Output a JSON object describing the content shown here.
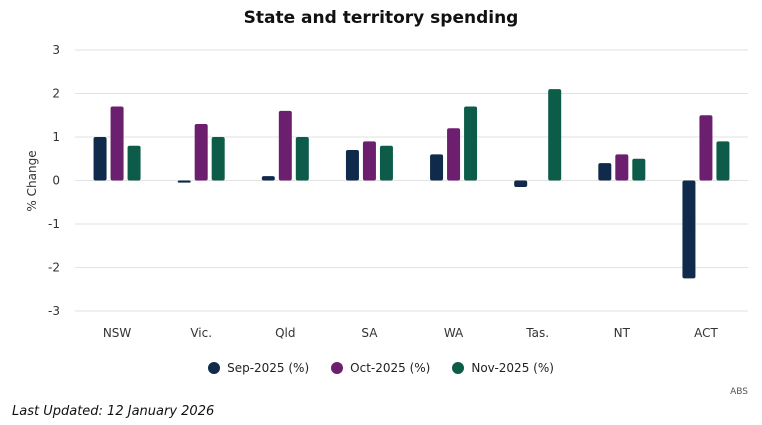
{
  "chart_data": {
    "type": "bar",
    "title": "State and territory spending",
    "xlabel": "",
    "ylabel": "% Change",
    "ylim": [
      -3,
      3
    ],
    "yticks": [
      3,
      2,
      1,
      0,
      -1,
      -2,
      -3
    ],
    "grid": true,
    "legend_position": "bottom",
    "categories": [
      "NSW",
      "Vic.",
      "Qld",
      "SA",
      "WA",
      "Tas.",
      "NT",
      "ACT"
    ],
    "series": [
      {
        "name": "Sep-2025 (%)",
        "color": "#0f2a4a",
        "values": [
          1.0,
          -0.05,
          0.1,
          0.7,
          0.6,
          -0.15,
          0.4,
          -2.25
        ]
      },
      {
        "name": "Oct-2025 (%)",
        "color": "#6b1f6e",
        "values": [
          1.7,
          1.3,
          1.6,
          0.9,
          1.2,
          0.0,
          0.6,
          1.5
        ]
      },
      {
        "name": "Nov-2025 (%)",
        "color": "#0d5c4a",
        "values": [
          0.8,
          1.0,
          1.0,
          0.8,
          1.7,
          2.1,
          0.5,
          0.9
        ]
      }
    ]
  },
  "source": "ABS",
  "last_updated": "Last Updated: 12 January 2026"
}
